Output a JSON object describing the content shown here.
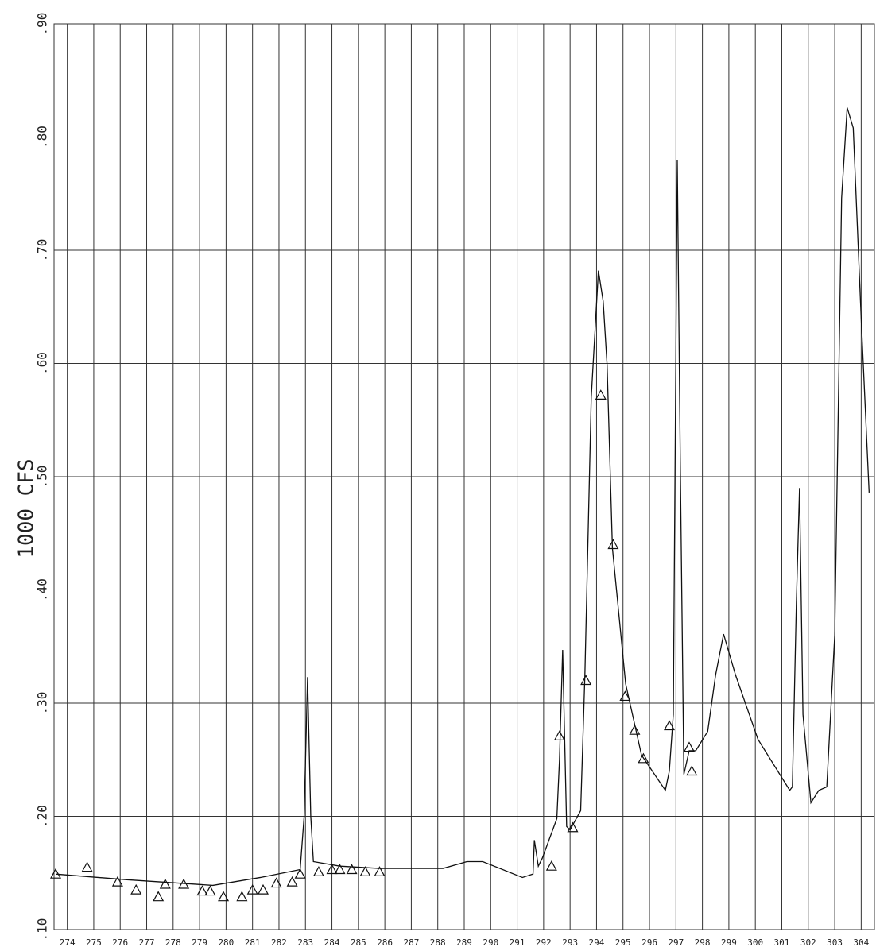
{
  "chart_data": {
    "type": "line",
    "y_label": "1000 CFS",
    "xlim": [
      273.5,
      304.5
    ],
    "xticks": [
      274,
      275,
      276,
      277,
      278,
      279,
      280,
      281,
      282,
      283,
      284,
      285,
      286,
      287,
      288,
      289,
      290,
      291,
      292,
      293,
      294,
      295,
      296,
      297,
      298,
      299,
      300,
      301,
      302,
      303,
      304
    ],
    "ylim": [
      0.1,
      0.9
    ],
    "yticks": [
      {
        "value": 0.1,
        "label": ".10"
      },
      {
        "value": 0.2,
        "label": ".20"
      },
      {
        "value": 0.3,
        "label": ".30"
      },
      {
        "value": 0.4,
        "label": ".40"
      },
      {
        "value": 0.5,
        "label": ".50"
      },
      {
        "value": 0.6,
        "label": ".60"
      },
      {
        "value": 0.7,
        "label": ".70"
      },
      {
        "value": 0.8,
        "label": ".80"
      },
      {
        "value": 0.9,
        "label": ".90"
      }
    ],
    "grid": true,
    "series": [
      {
        "color": "#111111",
        "marker": "none",
        "x": [
          273.56,
          276.25,
          279.5,
          281.3,
          282.8,
          282.95,
          283.08,
          283.2,
          283.3,
          284.3,
          285.8,
          288.2,
          289.1,
          289.7,
          291.2,
          291.6,
          291.65,
          291.8,
          291.95,
          292.5,
          292.6,
          292.72,
          292.87,
          293.0,
          293.4,
          293.56,
          293.8,
          294.07,
          294.25,
          294.4,
          294.6,
          295.1,
          295.7,
          296.6,
          296.75,
          296.9,
          297.05,
          297.17,
          297.3,
          297.5,
          297.75,
          298.2,
          298.5,
          298.8,
          299.25,
          300.1,
          301.3,
          301.4,
          301.55,
          301.67,
          301.8,
          302.1,
          302.4,
          302.7,
          303.0,
          303.26,
          303.47,
          303.7,
          304.0,
          304.3
        ],
        "values": [
          0.149,
          0.144,
          0.139,
          0.146,
          0.153,
          0.2,
          0.323,
          0.2,
          0.16,
          0.156,
          0.154,
          0.154,
          0.16,
          0.16,
          0.146,
          0.149,
          0.179,
          0.156,
          0.163,
          0.198,
          0.25,
          0.347,
          0.191,
          0.188,
          0.205,
          0.325,
          0.57,
          0.682,
          0.655,
          0.598,
          0.437,
          0.317,
          0.254,
          0.223,
          0.24,
          0.29,
          0.78,
          0.5,
          0.237,
          0.258,
          0.258,
          0.275,
          0.325,
          0.361,
          0.325,
          0.268,
          0.223,
          0.226,
          0.388,
          0.49,
          0.29,
          0.212,
          0.223,
          0.226,
          0.36,
          0.746,
          0.826,
          0.808,
          0.64,
          0.486
        ]
      },
      {
        "color": "#111111",
        "marker": "triangle",
        "x": [
          273.56,
          274.75,
          275.9,
          276.6,
          277.44,
          277.7,
          278.4,
          279.1,
          279.4,
          279.9,
          280.6,
          281.0,
          281.4,
          281.9,
          282.5,
          282.8,
          283.5,
          284.0,
          284.3,
          284.75,
          285.26,
          285.8,
          292.3,
          292.6,
          293.1,
          293.6,
          294.16,
          294.63,
          295.08,
          295.44,
          295.77,
          296.75,
          297.5,
          297.6
        ],
        "values": [
          0.149,
          0.155,
          0.142,
          0.135,
          0.129,
          0.14,
          0.14,
          0.134,
          0.134,
          0.129,
          0.129,
          0.135,
          0.135,
          0.141,
          0.142,
          0.149,
          0.151,
          0.153,
          0.153,
          0.153,
          0.151,
          0.151,
          0.156,
          0.271,
          0.19,
          0.32,
          0.572,
          0.44,
          0.306,
          0.276,
          0.251,
          0.28,
          0.261,
          0.24
        ]
      }
    ]
  }
}
